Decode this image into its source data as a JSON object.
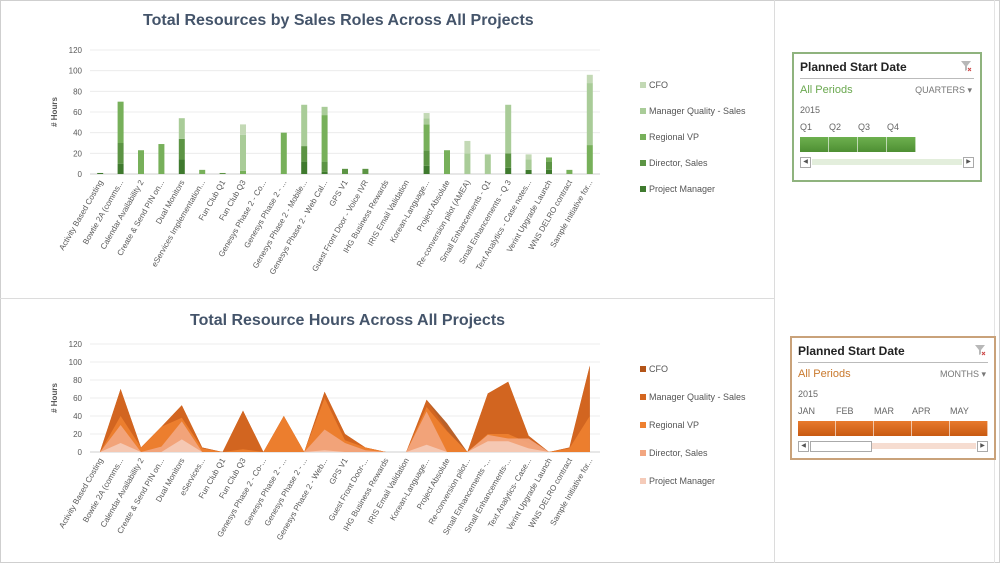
{
  "charts": {
    "top": {
      "title": "Total Resources by Sales Roles Across All Projects",
      "legend": [
        "CFO",
        "Manager Quality - Sales",
        "Regional VP",
        "Director, Sales",
        "Project Manager"
      ]
    },
    "bottom": {
      "title": "Total Resource Hours Across All Projects",
      "legend": [
        "CFO",
        "Manager Quality - Sales",
        "Regional VP",
        "Director, Sales",
        "Project Manager"
      ]
    }
  },
  "colors": {
    "green": [
      "#c3d9b5",
      "#a9cc98",
      "#77b05a",
      "#5c9444",
      "#3f7a2e"
    ],
    "orange": [
      "#b35418",
      "#d4661f",
      "#ee8030",
      "#f2a680",
      "#f5cbb9"
    ],
    "green_periods": "#6aa84f",
    "orange_periods": "#c9792d"
  },
  "chart_data": [
    {
      "type": "bar",
      "stacked": true,
      "title": "Total Resources by Sales Roles Across All Projects",
      "xlabel": "",
      "ylabel": "# Hours",
      "ylim": [
        0,
        120
      ],
      "yticks": [
        0,
        20,
        40,
        60,
        80,
        100,
        120
      ],
      "grid": true,
      "legend_position": "right",
      "categories": [
        "Activity Based Costing",
        "Bowtie 2A (comms...",
        "Calendar Availability 2",
        "Create & Send PIN on...",
        "Dual Monitors",
        "eServices Implementation...",
        "Fun Club Q1",
        "Fun Club Q3",
        "Genesys Phase 2 - Co...",
        "Genesys Phase 2 - ...",
        "Genesys Phase 2 - Mobile...",
        "Genesys Phase 2 - Web Cal...",
        "GPS V1",
        "Guest Front Door - Voice IVR",
        "IHG Business Rewards",
        "IRIS Email Validation",
        "Korean-Language...",
        "Project Absolute",
        "Re-conversion pilot (AMEA)",
        "Small Enhancements - Q1",
        "Small Enhancements - Q 3",
        "Text Analytics - Case notes...",
        "Verint Upgrade Launch",
        "WNS DELRO contract",
        "Sample Initiative for..."
      ],
      "series": [
        {
          "name": "CFO",
          "values": [
            0,
            0,
            0,
            0,
            0,
            0,
            0,
            10,
            0,
            0,
            0,
            0,
            0,
            0,
            0,
            0,
            5,
            0,
            12,
            0,
            0,
            5,
            0,
            0,
            8
          ]
        },
        {
          "name": "Manager Quality - Sales",
          "values": [
            0,
            0,
            0,
            0,
            20,
            0,
            0,
            35,
            0,
            0,
            40,
            8,
            0,
            0,
            0,
            0,
            6,
            0,
            20,
            19,
            47,
            10,
            0,
            0,
            60
          ]
        },
        {
          "name": "Regional VP",
          "values": [
            0,
            40,
            23,
            29,
            0,
            4,
            0,
            3,
            0,
            40,
            0,
            45,
            0,
            0,
            0,
            0,
            25,
            23,
            0,
            0,
            0,
            0,
            4,
            4,
            28
          ]
        },
        {
          "name": "Director, Sales",
          "values": [
            0,
            20,
            0,
            0,
            20,
            0,
            1,
            0,
            0,
            0,
            15,
            10,
            5,
            5,
            0,
            0,
            15,
            0,
            0,
            0,
            14,
            0,
            8,
            0,
            0
          ]
        },
        {
          "name": "Project Manager",
          "values": [
            1,
            10,
            0,
            0,
            14,
            0,
            0,
            0,
            0,
            0,
            12,
            2,
            0,
            0,
            0,
            0,
            8,
            0,
            0,
            0,
            6,
            4,
            4,
            0,
            0
          ]
        }
      ]
    },
    {
      "type": "area",
      "stacked": false,
      "title": "Total Resource Hours Across All Projects",
      "xlabel": "",
      "ylabel": "# Hours",
      "ylim": [
        0,
        120
      ],
      "yticks": [
        0,
        20,
        40,
        60,
        80,
        100,
        120
      ],
      "grid": true,
      "legend_position": "right",
      "categories": [
        "Activity Based Costing",
        "Bowtie 2A (comms...",
        "Calendar Availability 2",
        "Create & Send PIN on...",
        "Dual Monitors",
        "eServices...",
        "Fun Club Q1",
        "Fun Club Q3",
        "Genesys Phase 2 - Co-...",
        "Genesys Phase 2 - ...",
        "Genesys Phase 2 - ...",
        "Genesys Phase 2 - Web...",
        "GPS V1",
        "Guest Front Door-...",
        "IHG Business Rewards",
        "IRIS Email Validation",
        "Korean-Language...",
        "Project Absolute",
        "Re-conversion pilot...",
        "Small Enhancements -...",
        "Small Enhancements-...",
        "Text Analytics- Case...",
        "Verint Upgrade Launch",
        "WNS DELRO contract",
        "Sample Initiative for..."
      ],
      "series": [
        {
          "name": "CFO",
          "values": [
            1,
            70,
            5,
            28,
            52,
            5,
            0,
            46,
            0,
            40,
            0,
            67,
            20,
            5,
            0,
            0,
            58,
            32,
            0,
            65,
            78,
            18,
            0,
            5,
            96
          ]
        },
        {
          "name": "Manager Quality - Sales",
          "values": [
            1,
            70,
            5,
            28,
            52,
            5,
            0,
            46,
            0,
            40,
            0,
            67,
            20,
            5,
            0,
            0,
            58,
            24,
            0,
            65,
            78,
            18,
            0,
            5,
            96
          ]
        },
        {
          "name": "Regional VP",
          "values": [
            0,
            40,
            5,
            28,
            38,
            4,
            0,
            3,
            0,
            40,
            0,
            60,
            13,
            5,
            0,
            0,
            50,
            23,
            0,
            20,
            20,
            10,
            0,
            4,
            40
          ]
        },
        {
          "name": "Director, Sales",
          "values": [
            0,
            30,
            0,
            6,
            34,
            0,
            0,
            0,
            0,
            0,
            0,
            25,
            10,
            2,
            0,
            0,
            45,
            0,
            0,
            19,
            15,
            15,
            0,
            0,
            0
          ]
        },
        {
          "name": "Project Manager",
          "values": [
            0,
            10,
            0,
            0,
            14,
            0,
            0,
            0,
            0,
            0,
            0,
            2,
            0,
            0,
            0,
            0,
            8,
            0,
            0,
            12,
            12,
            4,
            0,
            0,
            0
          ]
        }
      ]
    }
  ],
  "slicers": {
    "top": {
      "title": "Planned Start Date",
      "periods": "All Periods",
      "level": "QUARTERS",
      "year": "2015",
      "units": [
        "Q1",
        "Q2",
        "Q3",
        "Q4"
      ]
    },
    "bottom": {
      "title": "Planned Start Date",
      "periods": "All Periods",
      "level": "MONTHS",
      "year": "2015",
      "units": [
        "JAN",
        "FEB",
        "MAR",
        "APR",
        "MAY"
      ]
    }
  },
  "icons": {
    "clear_filter": "clear-filter-icon",
    "dropdown": "chevron-down-icon",
    "scroll_left": "scroll-left-icon",
    "scroll_right": "scroll-right-icon"
  }
}
